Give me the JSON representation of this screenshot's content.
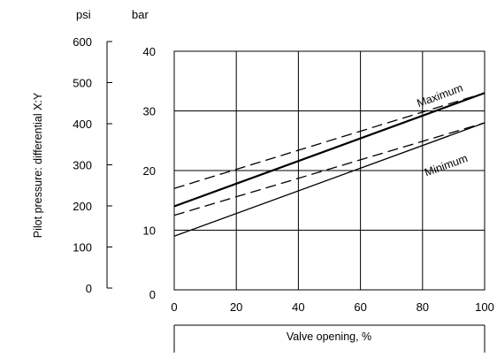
{
  "chart_data": {
    "type": "line",
    "xlabel": "Valve opening, %",
    "ylabel": "Pilot pressure: differential X:Y",
    "x_ticks": [
      0,
      20,
      40,
      60,
      80,
      100
    ],
    "xlim": [
      0,
      100
    ],
    "y_bar": {
      "unit": "bar",
      "ticks": [
        0,
        10,
        20,
        30,
        40
      ],
      "ylim": [
        0,
        40
      ]
    },
    "y_psi": {
      "unit": "psi",
      "ticks": [
        0,
        100,
        200,
        300,
        400,
        500,
        600
      ],
      "ylim": [
        0,
        600
      ]
    },
    "grid": true,
    "series": [
      {
        "style": "solid-bold",
        "x": [
          0,
          100
        ],
        "y": [
          14,
          33
        ]
      },
      {
        "style": "solid",
        "x": [
          0,
          100
        ],
        "y": [
          9,
          28
        ]
      },
      {
        "style": "dashed",
        "x": [
          0,
          100
        ],
        "y": [
          17,
          33
        ]
      },
      {
        "style": "dashed",
        "x": [
          0,
          100
        ],
        "y": [
          12.5,
          28
        ]
      }
    ],
    "annotations": [
      {
        "text": "Maximum",
        "x": 86,
        "y": 32
      },
      {
        "text": "Minimum",
        "x": 88,
        "y": 20.3
      }
    ]
  }
}
